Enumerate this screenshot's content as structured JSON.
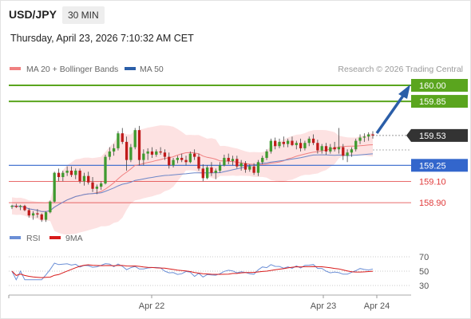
{
  "header": {
    "symbol": "USD/JPY",
    "timeframe": "30 MIN",
    "timestamp": "Thursday, April 23, 2026 7:10:32 AM CET"
  },
  "legend": {
    "ma20_label": "MA 20 + Bollinger Bands",
    "ma50_label": "MA 50",
    "credit": "Research © 2026 Trading Central"
  },
  "colors": {
    "resistance": "#5aa51e",
    "current_price": "#333333",
    "pivot": "#3366cc",
    "support": "#e03a3a",
    "ma20": "#f08080",
    "ma50": "#6b86c8",
    "bands_fill": "#fde2e2",
    "candle_up": "#3f9a2f",
    "candle_down": "#c01a1a",
    "arrow": "#2b5ea8",
    "rsi": "#6b8fd6",
    "rsi_ma": "#d81a1a"
  },
  "chart_data": {
    "type": "candlestick",
    "price_levels": [
      {
        "value": 160.0,
        "label": "160.00",
        "kind": "resistance"
      },
      {
        "value": 159.85,
        "label": "159.85",
        "kind": "resistance"
      },
      {
        "value": 159.53,
        "label": "159.53",
        "kind": "current"
      },
      {
        "value": 159.25,
        "label": "159.25",
        "kind": "pivot"
      },
      {
        "value": 159.1,
        "label": "159.10",
        "kind": "support"
      },
      {
        "value": 158.9,
        "label": "158.90",
        "kind": "support"
      }
    ],
    "candles": [
      [
        158.86,
        158.88,
        158.84,
        158.87
      ],
      [
        158.87,
        158.89,
        158.85,
        158.86
      ],
      [
        158.86,
        158.88,
        158.83,
        158.87
      ],
      [
        158.87,
        158.88,
        158.82,
        158.83
      ],
      [
        158.83,
        158.85,
        158.76,
        158.78
      ],
      [
        158.78,
        158.82,
        158.74,
        158.8
      ],
      [
        158.8,
        158.84,
        158.76,
        158.79
      ],
      [
        158.79,
        158.8,
        158.72,
        158.74
      ],
      [
        158.74,
        158.82,
        158.72,
        158.81
      ],
      [
        158.81,
        158.92,
        158.8,
        158.91
      ],
      [
        158.91,
        159.19,
        158.9,
        159.18
      ],
      [
        159.18,
        159.22,
        159.1,
        159.14
      ],
      [
        159.14,
        159.2,
        159.1,
        159.18
      ],
      [
        159.18,
        159.24,
        159.15,
        159.2
      ],
      [
        159.2,
        159.24,
        159.14,
        159.16
      ],
      [
        159.16,
        159.22,
        159.12,
        159.2
      ],
      [
        159.2,
        159.22,
        159.08,
        159.1
      ],
      [
        159.1,
        159.18,
        159.06,
        159.15
      ],
      [
        159.15,
        159.19,
        159.07,
        159.09
      ],
      [
        159.09,
        159.14,
        159.0,
        159.03
      ],
      [
        159.03,
        159.07,
        158.98,
        159.05
      ],
      [
        159.05,
        159.1,
        159.02,
        159.08
      ],
      [
        159.08,
        159.35,
        159.07,
        159.33
      ],
      [
        159.33,
        159.42,
        159.3,
        159.38
      ],
      [
        159.38,
        159.45,
        159.34,
        159.41
      ],
      [
        159.41,
        159.57,
        159.39,
        159.55
      ],
      [
        159.55,
        159.6,
        159.45,
        159.47
      ],
      [
        159.47,
        159.52,
        159.2,
        159.3
      ],
      [
        159.3,
        159.45,
        159.28,
        159.42
      ],
      [
        159.42,
        159.6,
        159.4,
        159.58
      ],
      [
        159.58,
        159.62,
        159.25,
        159.3
      ],
      [
        159.3,
        159.4,
        159.25,
        159.36
      ],
      [
        159.36,
        159.41,
        159.3,
        159.38
      ],
      [
        159.38,
        159.42,
        159.32,
        159.35
      ],
      [
        159.35,
        159.4,
        159.33,
        159.38
      ],
      [
        159.38,
        159.42,
        159.35,
        159.37
      ],
      [
        159.37,
        159.4,
        159.3,
        159.33
      ],
      [
        159.33,
        159.37,
        159.22,
        159.25
      ],
      [
        159.25,
        159.32,
        159.23,
        159.3
      ],
      [
        159.3,
        159.34,
        159.27,
        159.32
      ],
      [
        159.32,
        159.36,
        159.28,
        159.3
      ],
      [
        159.3,
        159.34,
        159.25,
        159.28
      ],
      [
        159.28,
        159.38,
        159.27,
        159.36
      ],
      [
        159.36,
        159.4,
        159.3,
        159.33
      ],
      [
        159.33,
        159.36,
        159.2,
        159.22
      ],
      [
        159.22,
        159.26,
        159.1,
        159.13
      ],
      [
        159.13,
        159.25,
        159.12,
        159.23
      ],
      [
        159.23,
        159.28,
        159.15,
        159.18
      ],
      [
        159.18,
        159.22,
        159.12,
        159.2
      ],
      [
        159.2,
        159.28,
        159.18,
        159.25
      ],
      [
        159.25,
        159.35,
        159.24,
        159.32
      ],
      [
        159.32,
        159.36,
        159.26,
        159.29
      ],
      [
        159.29,
        159.34,
        159.25,
        159.31
      ],
      [
        159.31,
        159.34,
        159.22,
        159.24
      ],
      [
        159.24,
        159.3,
        159.2,
        159.27
      ],
      [
        159.27,
        159.29,
        159.18,
        159.21
      ],
      [
        159.21,
        159.26,
        159.19,
        159.24
      ],
      [
        159.24,
        159.27,
        159.16,
        159.18
      ],
      [
        159.18,
        159.3,
        159.15,
        159.28
      ],
      [
        159.28,
        159.34,
        159.26,
        159.32
      ],
      [
        159.32,
        159.4,
        159.3,
        159.38
      ],
      [
        159.38,
        159.5,
        159.36,
        159.48
      ],
      [
        159.48,
        159.51,
        159.4,
        159.43
      ],
      [
        159.43,
        159.5,
        159.41,
        159.47
      ],
      [
        159.47,
        159.52,
        159.42,
        159.45
      ],
      [
        159.45,
        159.5,
        159.42,
        159.48
      ],
      [
        159.48,
        159.52,
        159.43,
        159.44
      ],
      [
        159.44,
        159.48,
        159.4,
        159.46
      ],
      [
        159.46,
        159.5,
        159.38,
        159.41
      ],
      [
        159.41,
        159.48,
        159.39,
        159.46
      ],
      [
        159.46,
        159.52,
        159.43,
        159.5
      ],
      [
        159.5,
        159.54,
        159.44,
        159.46
      ],
      [
        159.46,
        159.49,
        159.36,
        159.39
      ],
      [
        159.39,
        159.45,
        159.36,
        159.43
      ],
      [
        159.43,
        159.46,
        159.35,
        159.38
      ],
      [
        159.38,
        159.45,
        159.36,
        159.42
      ],
      [
        159.42,
        159.47,
        159.38,
        159.4
      ],
      [
        159.4,
        159.6,
        159.36,
        159.42
      ],
      [
        159.42,
        159.45,
        159.3,
        159.34
      ],
      [
        159.34,
        159.4,
        159.28,
        159.37
      ],
      [
        159.37,
        159.42,
        159.33,
        159.4
      ],
      [
        159.4,
        159.5,
        159.38,
        159.48
      ],
      [
        159.48,
        159.54,
        159.45,
        159.51
      ],
      [
        159.51,
        159.55,
        159.47,
        159.52
      ],
      [
        159.52,
        159.56,
        159.48,
        159.54
      ],
      [
        159.54,
        159.57,
        159.5,
        159.53
      ]
    ],
    "xticks": [
      "Apr 22",
      "Apr 23",
      "Apr 24"
    ],
    "rsi": {
      "legend": [
        "RSI",
        "9MA"
      ],
      "ticks": [
        70,
        50,
        30
      ],
      "ylim": [
        20,
        80
      ]
    }
  }
}
